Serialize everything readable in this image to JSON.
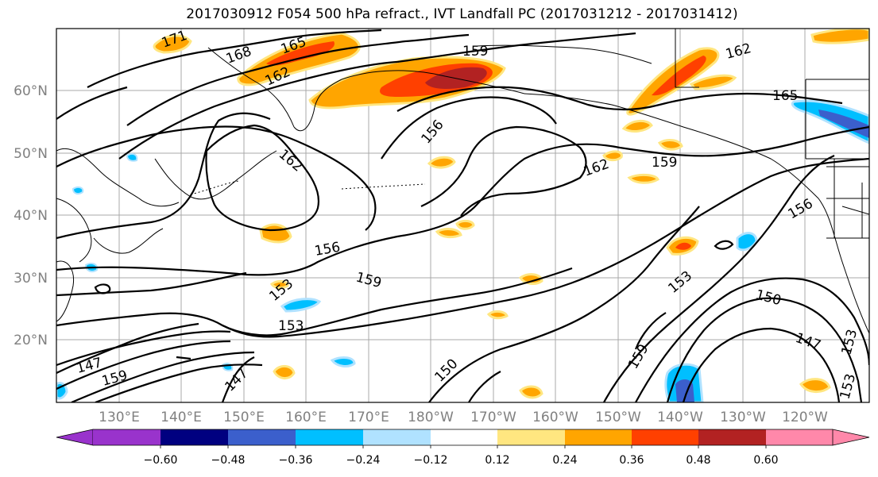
{
  "title": "2017030912 F054 500 hPa refract., IVT Landfall PC (2017031212 - 2017031412)",
  "map": {
    "lat_labels": [
      "60°N",
      "50°N",
      "40°N",
      "30°N",
      "20°N"
    ],
    "lon_labels": [
      "130°E",
      "140°E",
      "150°E",
      "160°E",
      "170°E",
      "180°W",
      "170°W",
      "160°W",
      "150°W",
      "140°W",
      "130°W",
      "120°W"
    ],
    "contour_labels": [
      "171",
      "165",
      "168",
      "162",
      "159",
      "162",
      "165",
      "156",
      "162",
      "162",
      "159",
      "156",
      "156",
      "159",
      "153",
      "153",
      "153",
      "150",
      "147",
      "150",
      "153",
      "147",
      "159",
      "159",
      "147",
      "153"
    ]
  },
  "colorbar": {
    "tick_labels": [
      "−0.60",
      "−0.48",
      "−0.36",
      "−0.24",
      "−0.12",
      "0.12",
      "0.24",
      "0.36",
      "0.48",
      "0.60"
    ],
    "colors": [
      "#9933cc",
      "#000080",
      "#3b5fcc",
      "#00bfff",
      "#b0e2ff",
      "#ffffff",
      "#ffe680",
      "#ffa500",
      "#ff4000",
      "#b22222",
      "#ff88aa"
    ]
  }
}
